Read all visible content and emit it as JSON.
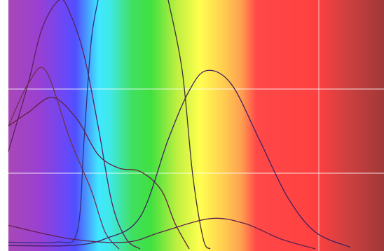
{
  "chart_data": {
    "type": "line",
    "xlim": [
      0,
      536
    ],
    "ylim": [
      0,
      1.5
    ],
    "xticks": [
      443
    ],
    "yticks": [
      0.5,
      1
    ],
    "grid": true,
    "series": [
      {
        "color": "#5a2060",
        "x": [
          0,
          28,
          48,
          73,
          88,
          108,
          128,
          148,
          168,
          188
        ],
        "values": [
          0.63,
          1.03,
          1.36,
          1.53,
          1.45,
          1.2,
          0.78,
          0.32,
          0.11,
          0.05
        ]
      },
      {
        "color": "#703050",
        "x": [
          0,
          28,
          53,
          88,
          118,
          138,
          158
        ],
        "values": [
          0.78,
          1.03,
          1.11,
          0.7,
          0.4,
          0.15,
          0.05
        ]
      },
      {
        "color": "#602040",
        "x": [
          0,
          28,
          63,
          98,
          128,
          158,
          188,
          218,
          238,
          258
        ],
        "values": [
          0.78,
          0.86,
          0.95,
          0.82,
          0.61,
          0.53,
          0.51,
          0.4,
          0.2,
          0.05
        ]
      },
      {
        "color": "#303080",
        "x": [
          0,
          68,
          98,
          108,
          118,
          128
        ],
        "values": [
          0.09,
          0.09,
          0.15,
          0.7,
          1.28,
          1.53
        ]
      },
      {
        "color": "#403030",
        "x": [
          228,
          248,
          263,
          278,
          288
        ],
        "values": [
          1.53,
          1.11,
          0.49,
          0.11,
          0.05
        ]
      },
      {
        "color": "#402060",
        "x": [
          0,
          88,
          138,
          188,
          228,
          258,
          283,
          318,
          358,
          398,
          438,
          488
        ],
        "values": [
          0.07,
          0.07,
          0.11,
          0.24,
          0.7,
          0.99,
          1.11,
          1.03,
          0.7,
          0.36,
          0.15,
          0.06
        ]
      },
      {
        "color": "#602050",
        "x": [
          0,
          88,
          168,
          218,
          288,
          338,
          388,
          438
        ],
        "values": [
          0.19,
          0.11,
          0.09,
          0.15,
          0.23,
          0.2,
          0.11,
          0.05
        ]
      }
    ]
  }
}
